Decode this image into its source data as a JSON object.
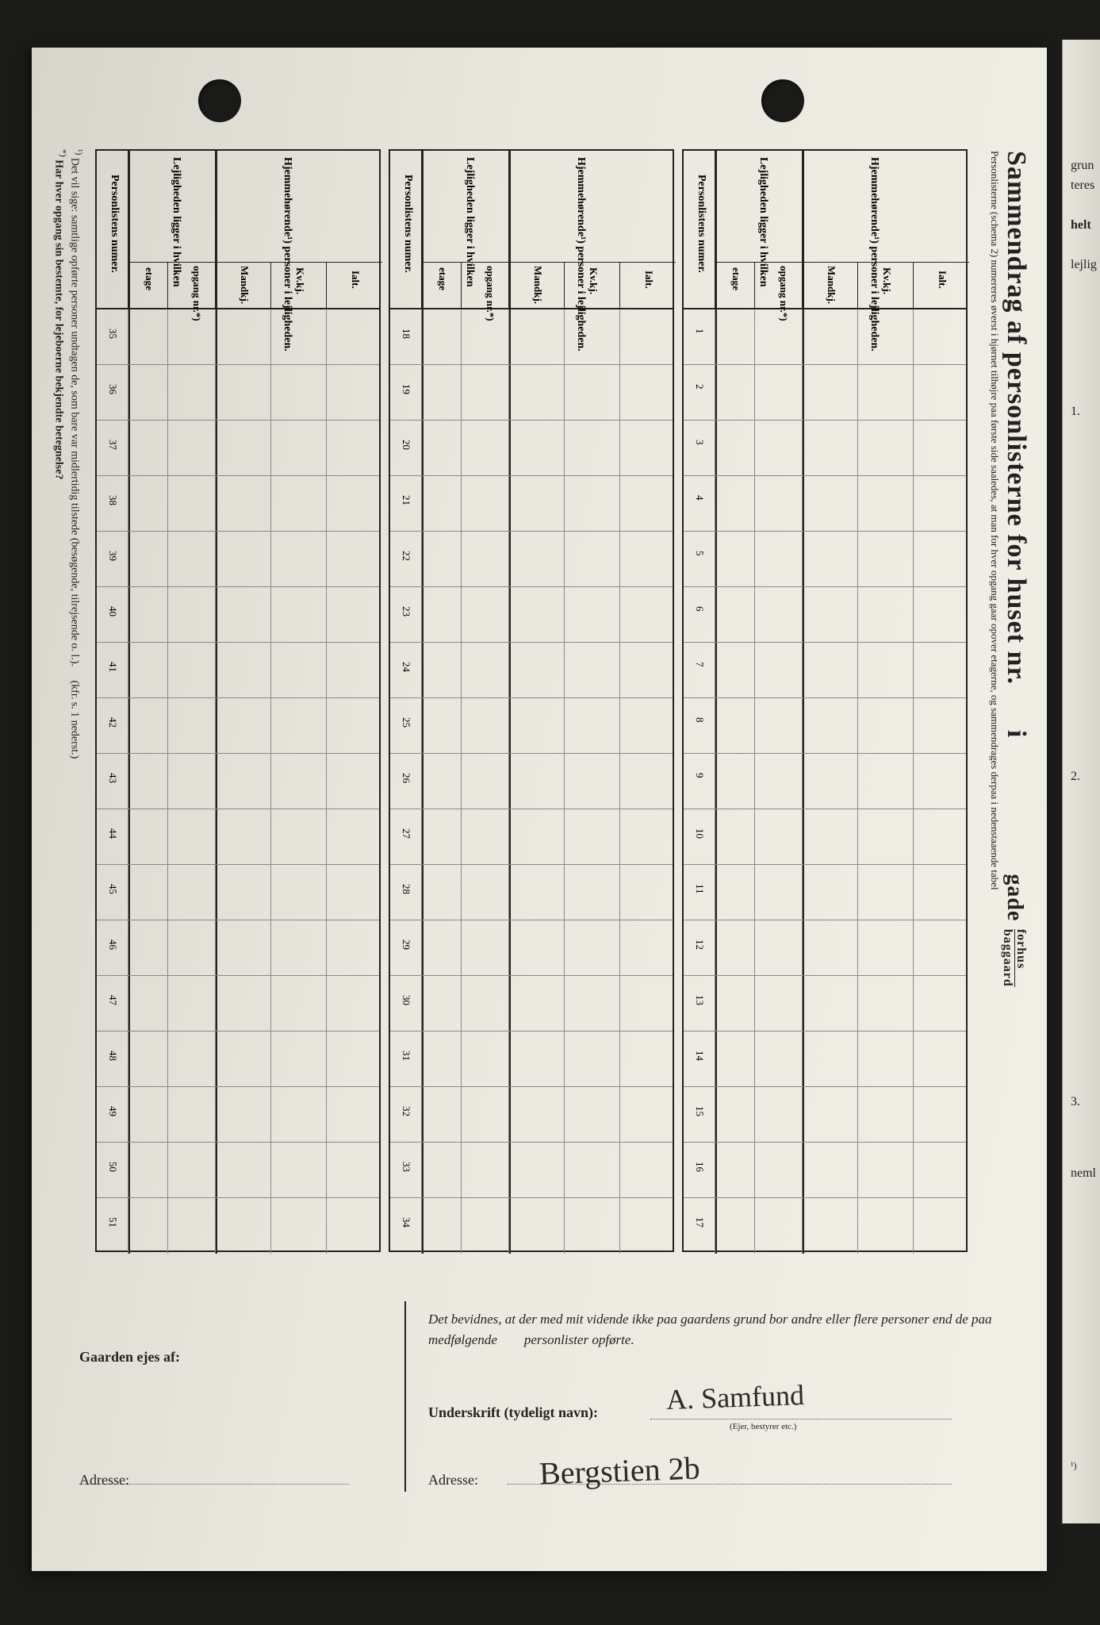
{
  "title": {
    "main": "Sammendrag af personlisterne for huset nr.",
    "in": "i",
    "gade": "gade",
    "forhus": "forhus",
    "baggaard": "baggaard",
    "sub1": "Personlisterne (schema 2) numereres øverst i hjørnet tilhøjre paa første side saaledes, at man for hver opgang gaar opover etagerne, og sammendrages derpaa i nedenstaaende tabel"
  },
  "headers": {
    "num": "Personlistens numer.",
    "lej": "Lejligheden ligger i hvilken",
    "etage": "etage",
    "opgang": "opgang nr.*)",
    "hjm": "Hjemmehørende¹) personer i lejligheden.",
    "mandkj": "Mandkj.",
    "kvkj": "Kv.kj.",
    "ialt": "Ialt."
  },
  "rows": {
    "block1": [
      "1",
      "2",
      "3",
      "4",
      "5",
      "6",
      "7",
      "8",
      "9",
      "10",
      "11",
      "12",
      "13",
      "14",
      "15",
      "16",
      "17"
    ],
    "block2": [
      "18",
      "19",
      "20",
      "21",
      "22",
      "23",
      "24",
      "25",
      "26",
      "27",
      "28",
      "29",
      "30",
      "31",
      "32",
      "33",
      "34"
    ],
    "block3": [
      "35",
      "36",
      "37",
      "38",
      "39",
      "40",
      "41",
      "42",
      "43",
      "44",
      "45",
      "46",
      "47",
      "48",
      "49",
      "50",
      "51"
    ]
  },
  "footnotes": {
    "f1_sup": "¹)",
    "f1": "Det vil sige: samtlige opførte personer undtagen de, som bare var midlertidig tilstede (besøgende, tilrejsende o. l.).",
    "f1_ref": "(kfr. s. 1 nederst.)",
    "f2_sup": "*)",
    "f2": "Har hver opgang sin bestemte, for lejeboerne bekjendte betegnelse?"
  },
  "bottom": {
    "gaarden": "Gaarden ejes af:",
    "adresse": "Adresse:",
    "attest": "Det bevidnes, at der med mit vidende ikke paa gaardens grund bor andre eller flere personer end de paa medfølgende",
    "attest2": "personlister opførte.",
    "underskrift": "Underskrift (tydeligt navn):",
    "ejer": "(Ejer, bestyrer etc.)",
    "sig_name": "A. Samfund",
    "sig_addr": "Bergstien 2b"
  },
  "rightpage": {
    "r1": "grun",
    "r2": "teres",
    "r3": "helt",
    "r4": "lejlig",
    "n1": "1.",
    "n2": "2.",
    "n3": "3.",
    "n4": "neml",
    "n5": "¹)"
  },
  "colors": {
    "ink": "#222222",
    "paper_light": "#f2f0e6",
    "paper_dark": "#d8d6cc",
    "bg": "#1a1a18"
  }
}
